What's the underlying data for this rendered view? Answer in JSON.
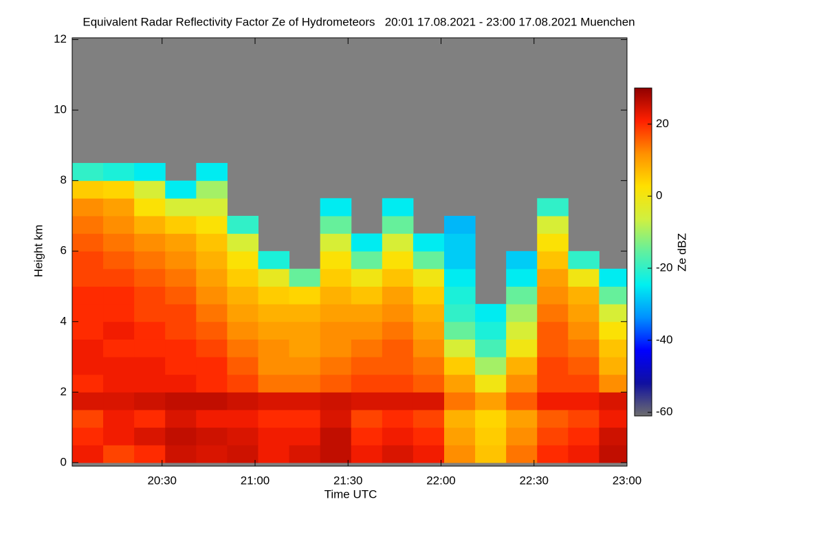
{
  "chart_data": {
    "type": "heatmap",
    "title": "Equivalent Radar Reflectivity Factor Ze of Hydrometeors   20:01 17.08.2021 - 23:00 17.08.2021 Muenchen",
    "x_label": "Time UTC",
    "y_label": "Height km",
    "z_label": "Ze dBZ",
    "xlim": [
      "20:01",
      "23:00"
    ],
    "xticks": [
      "20:30",
      "21:00",
      "21:30",
      "22:00",
      "22:30",
      "23:00"
    ],
    "ylim": [
      -0.1,
      12.05
    ],
    "yticks": [
      0,
      2,
      4,
      6,
      8,
      10,
      12
    ],
    "zlim": [
      -61,
      30
    ],
    "zticks": [
      20,
      0,
      -20,
      -40,
      -60
    ],
    "x": [
      "20:06",
      "20:16",
      "20:26",
      "20:36",
      "20:46",
      "20:56",
      "21:06",
      "21:16",
      "21:26",
      "21:36",
      "21:46",
      "21:56",
      "22:06",
      "22:16",
      "22:26",
      "22:36",
      "22:46",
      "22:56"
    ],
    "y": [
      0.25,
      0.75,
      1.25,
      1.75,
      2.25,
      2.75,
      3.25,
      3.75,
      4.25,
      4.75,
      5.25,
      5.75,
      6.25,
      6.75,
      7.25,
      7.75,
      8.25,
      8.75
    ],
    "z": [
      [
        22,
        20,
        18,
        24,
        20,
        22,
        22,
        20,
        20,
        20,
        18,
        18,
        16,
        14,
        12,
        5,
        -20,
        null
      ],
      [
        18,
        22,
        22,
        24,
        22,
        22,
        20,
        22,
        20,
        20,
        18,
        16,
        14,
        12,
        10,
        4,
        -22,
        null
      ],
      [
        20,
        24,
        20,
        25,
        22,
        22,
        20,
        20,
        18,
        18,
        16,
        14,
        12,
        8,
        2,
        -5,
        -25,
        null
      ],
      [
        25,
        26,
        24,
        26,
        22,
        20,
        20,
        18,
        18,
        16,
        14,
        12,
        10,
        5,
        -5,
        -25,
        null,
        null
      ],
      [
        24,
        25,
        22,
        26,
        20,
        20,
        18,
        16,
        14,
        12,
        10,
        8,
        6,
        2,
        -5,
        -10,
        -25,
        null
      ],
      [
        25,
        24,
        22,
        25,
        18,
        16,
        14,
        12,
        10,
        8,
        5,
        2,
        -5,
        -20,
        null,
        null,
        null,
        null
      ],
      [
        22,
        22,
        20,
        24,
        14,
        12,
        12,
        10,
        8,
        5,
        -2,
        -22,
        null,
        null,
        null,
        null,
        null,
        null
      ],
      [
        24,
        22,
        20,
        24,
        14,
        12,
        10,
        10,
        8,
        4,
        -15,
        null,
        null,
        null,
        null,
        null,
        null,
        null
      ],
      [
        26,
        26,
        24,
        25,
        16,
        14,
        12,
        12,
        10,
        8,
        5,
        2,
        -5,
        -15,
        -25,
        null,
        null,
        null
      ],
      [
        22,
        20,
        18,
        24,
        18,
        16,
        14,
        12,
        10,
        6,
        0,
        -15,
        -25,
        null,
        null,
        null,
        null,
        null
      ],
      [
        24,
        22,
        20,
        24,
        18,
        16,
        16,
        14,
        12,
        10,
        6,
        2,
        -5,
        -15,
        -25,
        null,
        null,
        null
      ],
      [
        22,
        20,
        18,
        24,
        16,
        14,
        12,
        10,
        8,
        5,
        0,
        -15,
        -25,
        null,
        null,
        null,
        null,
        null
      ],
      [
        12,
        10,
        8,
        14,
        10,
        5,
        -5,
        -15,
        -20,
        -22,
        -25,
        -28,
        -28,
        -30,
        null,
        null,
        null,
        null
      ],
      [
        6,
        5,
        4,
        10,
        0,
        -10,
        -18,
        -22,
        -25,
        null,
        null,
        null,
        null,
        null,
        null,
        null,
        null,
        null
      ],
      [
        14,
        12,
        10,
        16,
        12,
        8,
        0,
        -5,
        -10,
        -15,
        -25,
        -28,
        null,
        null,
        null,
        null,
        null,
        null
      ],
      [
        20,
        18,
        16,
        22,
        18,
        18,
        16,
        16,
        14,
        12,
        10,
        6,
        2,
        -5,
        -20,
        null,
        null,
        null
      ],
      [
        22,
        20,
        18,
        22,
        18,
        16,
        14,
        12,
        10,
        8,
        0,
        -20,
        null,
        null,
        null,
        null,
        null,
        null
      ],
      [
        26,
        25,
        22,
        24,
        12,
        8,
        6,
        2,
        -5,
        -15,
        -25,
        null,
        null,
        null,
        null,
        null,
        null,
        null
      ]
    ],
    "colormap": [
      "#6e6e6e",
      "#1010a0",
      "#0000ff",
      "#0090ff",
      "#00f0f0",
      "#60f0a0",
      "#d0f040",
      "#ffe000",
      "#ff9000",
      "#ff2000",
      "#900000"
    ],
    "background": "#808080"
  }
}
